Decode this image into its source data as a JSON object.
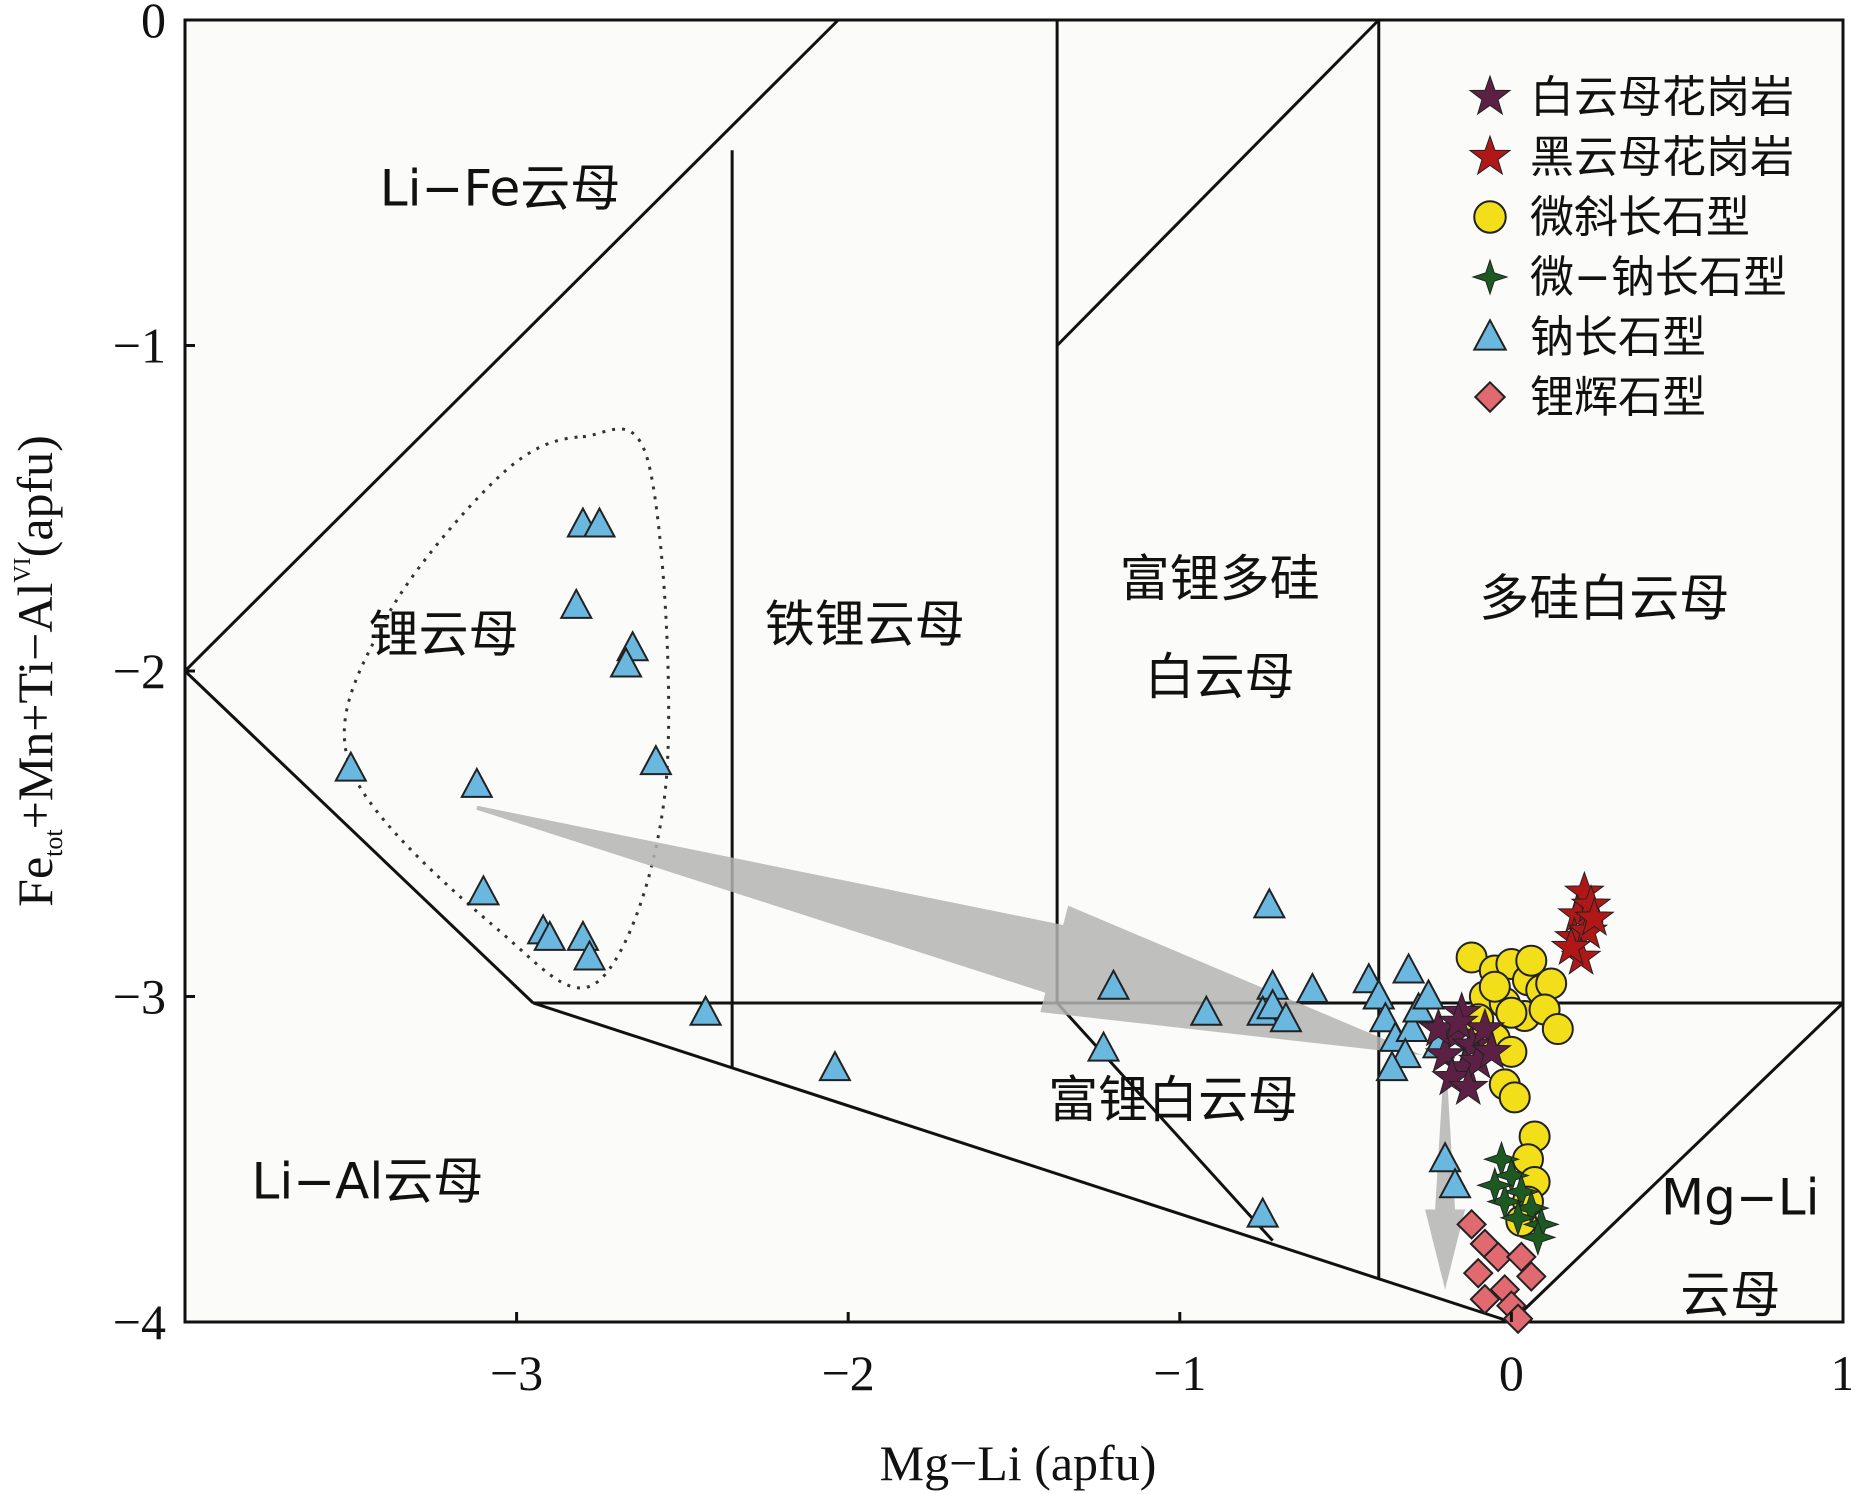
{
  "chart_data": {
    "type": "scatter",
    "xlabel": "Mg−Li (apfu)",
    "ylabel": {
      "main": "Fe",
      "sub": "tot",
      "rest": "+Mn+Ti−Al",
      "sup": "VI",
      "unit": "(apfu)"
    },
    "xlim": [
      -4,
      1
    ],
    "ylim": [
      -4,
      0
    ],
    "x_ticks": [
      {
        "value": -3,
        "label": "−3"
      },
      {
        "value": -2,
        "label": "−2"
      },
      {
        "value": -1,
        "label": "−1"
      },
      {
        "value": 0,
        "label": "0"
      },
      {
        "value": 1,
        "label": "1"
      }
    ],
    "y_ticks": [
      {
        "value": 0,
        "label": "0"
      },
      {
        "value": -1,
        "label": "−1"
      },
      {
        "value": -2,
        "label": "−2"
      },
      {
        "value": -3,
        "label": "−3"
      },
      {
        "value": -4,
        "label": "−4"
      }
    ],
    "grid": false,
    "legend_position": "top-right",
    "boundaries": [
      [
        [
          -4,
          -2
        ],
        [
          -2.03,
          0
        ]
      ],
      [
        [
          -4,
          -2
        ],
        [
          -2.95,
          -3.02
        ]
      ],
      [
        [
          -2.95,
          -3.02
        ],
        [
          0,
          -4
        ]
      ],
      [
        [
          -2.95,
          -3.02
        ],
        [
          1,
          -3.02
        ]
      ],
      [
        [
          -2.35,
          -0.4
        ],
        [
          -2.35,
          -3.22
        ]
      ],
      [
        [
          -1.37,
          0
        ],
        [
          -1.37,
          -3.02
        ]
      ],
      [
        [
          -1.37,
          -1
        ],
        [
          -0.4,
          0
        ]
      ],
      [
        [
          -0.4,
          0
        ],
        [
          -0.4,
          -3.87
        ]
      ],
      [
        [
          -1.37,
          -3.02
        ],
        [
          -0.72,
          -3.75
        ]
      ],
      [
        [
          1,
          -3.02
        ],
        [
          0,
          -4
        ]
      ]
    ],
    "regions": [
      {
        "label": "Li−Fe云母",
        "x": -3.05,
        "y": -0.57
      },
      {
        "label": "锂云母",
        "x": -3.22,
        "y": -1.94
      },
      {
        "label": "铁锂云母",
        "x": -1.95,
        "y": -1.91
      },
      {
        "label": "富锂多硅",
        "x": -0.88,
        "y": -1.77
      },
      {
        "label": "白云母",
        "x": -0.88,
        "y": -2.07
      },
      {
        "label": "多硅白云母",
        "x": 0.28,
        "y": -1.83
      },
      {
        "label": "富锂白云母",
        "x": -1.02,
        "y": -3.37
      },
      {
        "label": "Li−Al云母",
        "x": -3.45,
        "y": -3.62
      },
      {
        "label": "Mg−Li",
        "x": 0.69,
        "y": -3.67
      },
      {
        "label": "云母",
        "x": 0.66,
        "y": -3.97
      }
    ],
    "trend_arrows": [
      {
        "from": [
          -3.12,
          -2.42
        ],
        "to": [
          -0.27,
          -3.18
        ]
      },
      {
        "from": [
          -0.2,
          -3.25
        ],
        "to": [
          -0.2,
          -3.9
        ]
      }
    ],
    "envelope": [
      [
        -2.8,
        -1.28
      ],
      [
        -2.6,
        -1.37
      ],
      [
        -2.55,
        -2.35
      ],
      [
        -2.75,
        -2.95
      ],
      [
        -3.05,
        -2.8
      ],
      [
        -3.5,
        -2.3
      ],
      [
        -3.4,
        -1.85
      ],
      [
        -3.05,
        -1.4
      ]
    ],
    "series": [
      {
        "name": "白云母花岗岩",
        "marker": "star",
        "color": "#5c2045",
        "points": [
          [
            -0.15,
            -3.05
          ],
          [
            -0.17,
            -3.12
          ],
          [
            -0.12,
            -3.15
          ],
          [
            -0.2,
            -3.18
          ],
          [
            -0.08,
            -3.1
          ],
          [
            -0.14,
            -3.22
          ],
          [
            -0.18,
            -3.25
          ],
          [
            -0.1,
            -3.2
          ],
          [
            -0.22,
            -3.1
          ],
          [
            -0.13,
            -3.28
          ],
          [
            -0.06,
            -3.17
          ],
          [
            -0.16,
            -3.08
          ]
        ]
      },
      {
        "name": "黑云母花岗岩",
        "marker": "star",
        "color": "#b01818",
        "points": [
          [
            0.22,
            -2.68
          ],
          [
            0.2,
            -2.75
          ],
          [
            0.24,
            -2.72
          ],
          [
            0.19,
            -2.82
          ],
          [
            0.23,
            -2.8
          ],
          [
            0.21,
            -2.88
          ],
          [
            0.18,
            -2.85
          ],
          [
            0.25,
            -2.76
          ]
        ]
      },
      {
        "name": "微斜长石型",
        "marker": "circle",
        "color": "#f2df1a",
        "points": [
          [
            -0.12,
            -2.88
          ],
          [
            -0.05,
            -2.92
          ],
          [
            0.0,
            -2.9
          ],
          [
            0.05,
            -2.95
          ],
          [
            0.09,
            -2.98
          ],
          [
            -0.08,
            -3.0
          ],
          [
            0.12,
            -2.96
          ],
          [
            -0.02,
            -3.02
          ],
          [
            0.04,
            -3.06
          ],
          [
            0.1,
            -3.04
          ],
          [
            -0.1,
            -3.07
          ],
          [
            0.06,
            -2.89
          ],
          [
            0.14,
            -3.1
          ],
          [
            -0.05,
            -3.13
          ],
          [
            0.0,
            -3.17
          ],
          [
            -0.02,
            -3.27
          ],
          [
            0.01,
            -3.31
          ],
          [
            0.07,
            -3.43
          ],
          [
            0.05,
            -3.5
          ],
          [
            0.07,
            -3.57
          ],
          [
            0.05,
            -3.63
          ],
          [
            0.03,
            -3.69
          ],
          [
            -0.05,
            -2.97
          ],
          [
            0.0,
            -3.05
          ]
        ]
      },
      {
        "name": "微−钠长石型",
        "marker": "star4",
        "color": "#1d5a22",
        "points": [
          [
            -0.03,
            -3.5
          ],
          [
            0.0,
            -3.55
          ],
          [
            0.03,
            -3.6
          ],
          [
            -0.02,
            -3.63
          ],
          [
            0.06,
            -3.65
          ],
          [
            0.09,
            -3.7
          ],
          [
            0.02,
            -3.68
          ],
          [
            0.08,
            -3.74
          ],
          [
            -0.05,
            -3.58
          ]
        ]
      },
      {
        "name": "钠长石型",
        "marker": "triangle",
        "color": "#6ab8df",
        "points": [
          [
            -2.8,
            -1.55
          ],
          [
            -2.75,
            -1.55
          ],
          [
            -2.82,
            -1.8
          ],
          [
            -2.65,
            -1.93
          ],
          [
            -2.67,
            -1.98
          ],
          [
            -2.58,
            -2.28
          ],
          [
            -3.5,
            -2.3
          ],
          [
            -3.12,
            -2.35
          ],
          [
            -3.1,
            -2.68
          ],
          [
            -2.92,
            -2.8
          ],
          [
            -2.9,
            -2.82
          ],
          [
            -2.8,
            -2.82
          ],
          [
            -2.78,
            -2.88
          ],
          [
            -2.43,
            -3.05
          ],
          [
            -2.04,
            -3.22
          ],
          [
            -1.23,
            -3.16
          ],
          [
            -1.2,
            -2.97
          ],
          [
            -0.92,
            -3.05
          ],
          [
            -0.73,
            -2.72
          ],
          [
            -0.72,
            -2.97
          ],
          [
            -0.75,
            -3.05
          ],
          [
            -0.72,
            -3.03
          ],
          [
            -0.68,
            -3.07
          ],
          [
            -0.6,
            -2.98
          ],
          [
            -0.43,
            -2.95
          ],
          [
            -0.4,
            -3.0
          ],
          [
            -0.38,
            -3.07
          ],
          [
            -0.35,
            -3.13
          ],
          [
            -0.3,
            -3.1
          ],
          [
            -0.32,
            -3.18
          ],
          [
            -0.36,
            -3.22
          ],
          [
            -0.28,
            -3.04
          ],
          [
            -0.31,
            -2.92
          ],
          [
            -0.25,
            -3.0
          ],
          [
            -0.22,
            -3.15
          ],
          [
            -0.2,
            -3.5
          ],
          [
            -0.17,
            -3.58
          ],
          [
            -0.75,
            -3.67
          ]
        ]
      },
      {
        "name": "锂辉石型",
        "marker": "diamond",
        "color": "#e06a70",
        "points": [
          [
            -0.12,
            -3.7
          ],
          [
            -0.08,
            -3.76
          ],
          [
            -0.04,
            -3.8
          ],
          [
            0.03,
            -3.8
          ],
          [
            -0.1,
            -3.85
          ],
          [
            0.06,
            -3.86
          ],
          [
            -0.02,
            -3.9
          ],
          [
            -0.08,
            -3.93
          ],
          [
            0.0,
            -3.95
          ],
          [
            0.02,
            -3.99
          ]
        ]
      }
    ]
  }
}
